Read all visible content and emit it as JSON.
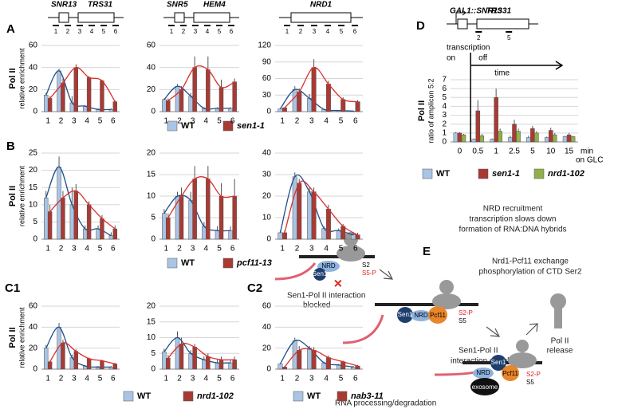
{
  "panel_labels": [
    "A",
    "B",
    "C1",
    "C2",
    "D",
    "E"
  ],
  "gene_maps": [
    {
      "genes": [
        "SNR13",
        "TRS31"
      ],
      "amplicons": [
        "1",
        "2",
        "3",
        "4",
        "5",
        "6"
      ]
    },
    {
      "genes": [
        "SNR5",
        "HEM4"
      ],
      "amplicons": [
        "1",
        "2",
        "3",
        "4",
        "5",
        "6"
      ]
    },
    {
      "genes": [
        "NRD1"
      ],
      "amplicons": [
        "1",
        "2",
        "3",
        "4",
        "5",
        "6"
      ]
    },
    {
      "genes": [
        "GAL1::SNR13",
        "TRS31"
      ],
      "amplicons": [
        "2",
        "5"
      ]
    }
  ],
  "chart_data": [
    {
      "type": "bar",
      "ylabel": "Pol II",
      "ysublabel": "relative enrichment",
      "categories": [
        "1",
        "2",
        "3",
        "4",
        "5",
        "6"
      ],
      "ylim": [
        0,
        60
      ],
      "yticks": [
        0,
        20,
        40,
        60
      ],
      "grid": true,
      "trend": true,
      "series": [
        {
          "name": "WT",
          "color": "#a9c4e4",
          "line_color": "#1f4e8c",
          "values": [
            15,
            37,
            8,
            5,
            2,
            2
          ],
          "errors": [
            2,
            2,
            6,
            1,
            1,
            1
          ]
        },
        {
          "name": "sen1-1",
          "color": "#a83a34",
          "line_color": "#d8302c",
          "values": [
            12,
            26,
            40,
            31,
            28,
            9
          ],
          "errors": [
            2,
            4,
            3,
            1,
            1,
            1
          ]
        }
      ]
    },
    {
      "type": "bar",
      "categories": [
        "1",
        "2",
        "3",
        "4",
        "5",
        "6"
      ],
      "ylim": [
        0,
        60
      ],
      "yticks": [
        0,
        20,
        40,
        60
      ],
      "grid": true,
      "trend": true,
      "series": [
        {
          "color": "#a9c4e4",
          "line_color": "#1f4e8c",
          "values": [
            11,
            23,
            14,
            3,
            3,
            3
          ],
          "errors": [
            1,
            2,
            3,
            1,
            1,
            1
          ]
        },
        {
          "color": "#a83a34",
          "line_color": "#d8302c",
          "values": [
            10,
            20,
            40,
            38,
            22,
            27
          ],
          "errors": [
            2,
            3,
            10,
            12,
            7,
            3
          ]
        }
      ]
    },
    {
      "type": "bar",
      "categories": [
        "1",
        "2",
        "3",
        "4",
        "5",
        "6"
      ],
      "ylim": [
        0,
        120
      ],
      "yticks": [
        0,
        30,
        60,
        90,
        120
      ],
      "grid": true,
      "trend": true,
      "series": [
        {
          "color": "#a9c4e4",
          "line_color": "#1f4e8c",
          "values": [
            5,
            40,
            24,
            4,
            2,
            1
          ],
          "errors": [
            1,
            6,
            8,
            1,
            1,
            1
          ]
        },
        {
          "color": "#a83a34",
          "line_color": "#d8302c",
          "values": [
            7,
            36,
            80,
            50,
            22,
            18
          ],
          "errors": [
            1,
            6,
            15,
            6,
            4,
            3
          ]
        }
      ]
    },
    {
      "type": "bar",
      "ylabel": "Pol II",
      "ysublabel": "relative enrichment",
      "categories": [
        "1",
        "2",
        "3",
        "4",
        "5",
        "6"
      ],
      "ylim": [
        0,
        25
      ],
      "yticks": [
        0,
        5,
        10,
        15,
        20,
        25
      ],
      "grid": true,
      "trend": true,
      "series": [
        {
          "name": "WT",
          "color": "#a9c4e4",
          "line_color": "#1f4e8c",
          "values": [
            12,
            21,
            10,
            3,
            3,
            1
          ],
          "errors": [
            2,
            3,
            5,
            1,
            1,
            1
          ]
        },
        {
          "name": "pcf11-13",
          "color": "#a83a34",
          "line_color": "#d8302c",
          "values": [
            8,
            12,
            14,
            10,
            6,
            3
          ],
          "errors": [
            2,
            2,
            2,
            1,
            1,
            1
          ]
        }
      ]
    },
    {
      "type": "bar",
      "categories": [
        "1",
        "2",
        "3",
        "4",
        "5",
        "6"
      ],
      "ylim": [
        0,
        20
      ],
      "yticks": [
        0,
        5,
        10,
        15,
        20
      ],
      "grid": true,
      "trend": true,
      "series": [
        {
          "color": "#a9c4e4",
          "line_color": "#1f4e8c",
          "values": [
            6,
            10,
            9,
            3,
            2,
            2
          ],
          "errors": [
            1,
            1,
            2,
            1,
            1,
            1
          ]
        },
        {
          "color": "#a83a34",
          "line_color": "#d8302c",
          "values": [
            5,
            10,
            14,
            14,
            10,
            10
          ],
          "errors": [
            1,
            2,
            3,
            3,
            3,
            4
          ]
        }
      ]
    },
    {
      "type": "bar",
      "categories": [
        "1",
        "2",
        "3",
        "4",
        "5",
        "6"
      ],
      "ylim": [
        0,
        40
      ],
      "yticks": [
        0,
        10,
        20,
        30,
        40
      ],
      "grid": true,
      "trend": true,
      "series": [
        {
          "color": "#a9c4e4",
          "line_color": "#1f4e8c",
          "values": [
            3,
            29,
            22,
            5,
            4,
            2
          ],
          "errors": [
            1,
            2,
            2,
            1,
            1,
            1
          ]
        },
        {
          "color": "#a83a34",
          "line_color": "#d8302c",
          "values": [
            3,
            26,
            22,
            14,
            6,
            2
          ],
          "errors": [
            1,
            2,
            2,
            2,
            1,
            1
          ]
        }
      ]
    },
    {
      "type": "bar",
      "ylabel": "Pol II",
      "ysublabel": "relative enrichment",
      "categories": [
        "1",
        "2",
        "3",
        "4",
        "5",
        "6"
      ],
      "ylim": [
        0,
        60
      ],
      "yticks": [
        0,
        20,
        40,
        60
      ],
      "grid": true,
      "trend": true,
      "series": [
        {
          "name": "WT",
          "color": "#a9c4e4",
          "line_color": "#1f4e8c",
          "values": [
            20,
            40,
            11,
            3,
            2,
            2
          ],
          "errors": [
            3,
            4,
            3,
            1,
            1,
            1
          ]
        },
        {
          "name": "nrd1-102",
          "color": "#a83a34",
          "line_color": "#d8302c",
          "values": [
            7,
            25,
            17,
            10,
            8,
            5
          ],
          "errors": [
            1,
            3,
            2,
            1,
            1,
            1
          ]
        }
      ]
    },
    {
      "type": "bar",
      "categories": [
        "1",
        "2",
        "3",
        "4",
        "5",
        "6"
      ],
      "ylim": [
        0,
        20
      ],
      "yticks": [
        0,
        5,
        10,
        15,
        20
      ],
      "grid": true,
      "trend": true,
      "series": [
        {
          "color": "#a9c4e4",
          "line_color": "#1f4e8c",
          "values": [
            5.5,
            10,
            5,
            3,
            2,
            2
          ],
          "errors": [
            1,
            2,
            1,
            1,
            1,
            1
          ]
        },
        {
          "color": "#a83a34",
          "line_color": "#d8302c",
          "values": [
            3.5,
            8,
            7,
            4,
            3,
            3
          ],
          "errors": [
            1,
            2,
            1,
            1,
            1,
            1
          ]
        }
      ]
    },
    {
      "type": "bar",
      "categories": [
        "1",
        "2",
        "3",
        "4",
        "5",
        "6"
      ],
      "ylim": [
        0,
        60
      ],
      "yticks": [
        0,
        20,
        40,
        60
      ],
      "grid": true,
      "trend": true,
      "series": [
        {
          "name": "WT",
          "color": "#a9c4e4",
          "line_color": "#1f4e8c",
          "values": [
            5,
            27,
            20,
            6,
            4,
            2
          ],
          "errors": [
            1,
            3,
            2,
            1,
            1,
            1
          ]
        },
        {
          "name": "nab3-11",
          "color": "#a83a34",
          "line_color": "#d8302c",
          "values": [
            2,
            18,
            18,
            11,
            7,
            3
          ],
          "errors": [
            1,
            4,
            3,
            2,
            1,
            1
          ]
        }
      ]
    },
    {
      "type": "bar",
      "ylabel": "Pol II",
      "ysublabel": "ratio of amplicon 5:2",
      "categories": [
        "0",
        "0.5",
        "1",
        "2.5",
        "5",
        "10",
        "15"
      ],
      "xunit": [
        "min",
        "on GLC"
      ],
      "annotations": [
        "transcription",
        "on",
        "off",
        "time"
      ],
      "ylim": [
        0,
        7
      ],
      "yticks": [
        0,
        1,
        2,
        3,
        4,
        5,
        6,
        7
      ],
      "grid": true,
      "trend": false,
      "series": [
        {
          "name": "WT",
          "color": "#a9c4e4",
          "values": [
            1,
            0.3,
            0.3,
            0.5,
            0.5,
            0.5,
            0.6
          ],
          "errors": [
            0.1,
            0.1,
            0.1,
            0.2,
            0.2,
            0.1,
            0.1
          ]
        },
        {
          "name": "sen1-1",
          "color": "#a83a34",
          "values": [
            1,
            3.5,
            5,
            2,
            1.5,
            1.3,
            0.8
          ],
          "errors": [
            0.1,
            1.2,
            1,
            0.5,
            0.3,
            0.3,
            0.2
          ]
        },
        {
          "name": "nrd1-102",
          "color": "#8fb04a",
          "values": [
            0.8,
            0.7,
            1.2,
            1.2,
            1,
            0.8,
            0.6
          ],
          "errors": [
            0.1,
            0.2,
            0.3,
            0.3,
            0.2,
            0.2,
            0.1
          ]
        }
      ]
    }
  ],
  "model": {
    "step1": [
      "NRD recruitment",
      "transcription slows down",
      "formation of RNA:DNA hybrids"
    ],
    "step2": [
      "Nrd1-Pcf11 exchange",
      "phosphorylation of CTD Ser2"
    ],
    "blocked": [
      "Sen1-Pol II interaction",
      "blocked"
    ],
    "enabled": [
      "Sen1-Pol II",
      "interaction enabled"
    ],
    "release": [
      "Pol II",
      "release"
    ],
    "degradation": "RNA processing/degradation",
    "labels": [
      "NRD",
      "Sen1",
      "S2",
      "S5-P",
      "Pcf11",
      "S2-P",
      "S5",
      "exosome"
    ]
  }
}
